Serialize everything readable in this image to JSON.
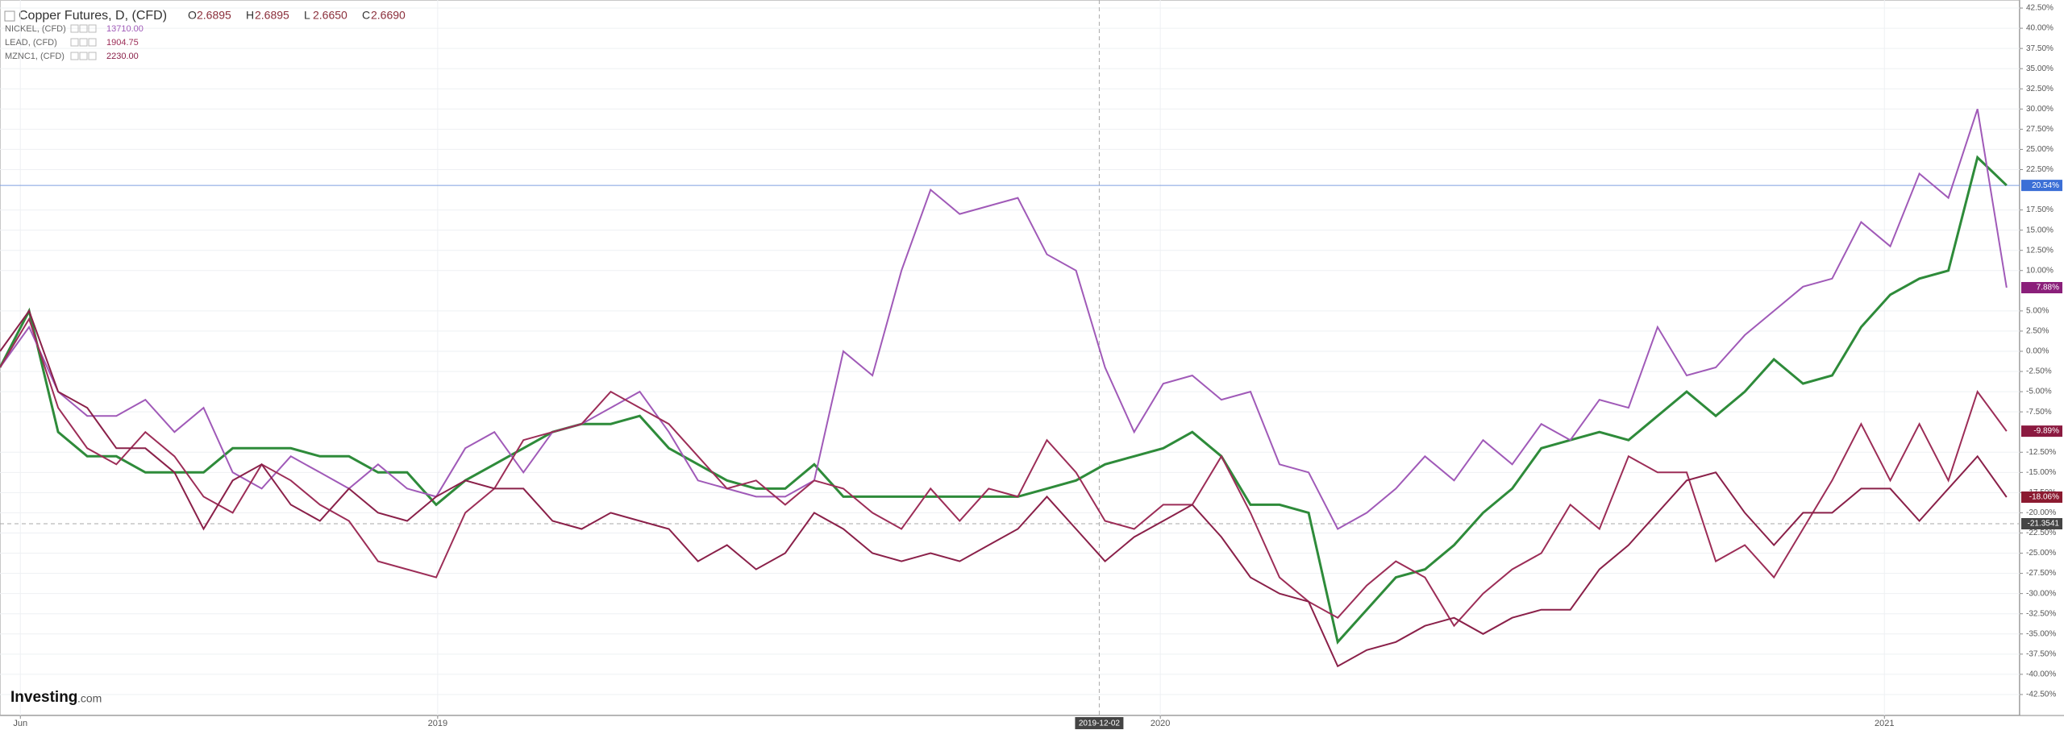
{
  "chart_data": {
    "type": "line",
    "title": "Copper Futures, D, (CFD)",
    "ohlc": [
      {
        "label": "O",
        "value": "2.6895"
      },
      {
        "label": "H",
        "value": "2.6895"
      },
      {
        "label": "L",
        "value": "2.6650"
      },
      {
        "label": "C",
        "value": "2.6690"
      }
    ],
    "legend": [
      {
        "name": "NICKEL, (CFD)",
        "price": "13710.00",
        "color": "#a05ab8"
      },
      {
        "name": "LEAD, (CFD)",
        "price": "1904.75",
        "color": "#9c2d57"
      },
      {
        "name": "MZNC1, (CFD)",
        "price": "2230.00",
        "color": "#8a2049"
      }
    ],
    "logo": {
      "main": "Investing",
      "suffix": ".com"
    },
    "xlim": [
      0,
      69.45
    ],
    "xticks": [
      {
        "value": 0.7,
        "label": "Jun"
      },
      {
        "value": 15.05,
        "label": "2019"
      },
      {
        "value": 39.9,
        "label": "2020"
      },
      {
        "value": 64.8,
        "label": "2021"
      }
    ],
    "crosshair": {
      "x": {
        "value": 37.8,
        "label": "2019-12-02"
      },
      "y": -21.3541
    },
    "ylim": [
      -45.1,
      43.5
    ],
    "yticks": [
      {
        "value": 42.5,
        "label": "42.50%"
      },
      {
        "value": 40,
        "label": "40.00%"
      },
      {
        "value": 37.5,
        "label": "37.50%"
      },
      {
        "value": 35,
        "label": "35.00%"
      },
      {
        "value": 32.5,
        "label": "32.50%"
      },
      {
        "value": 30,
        "label": "30.00%"
      },
      {
        "value": 27.5,
        "label": "27.50%"
      },
      {
        "value": 25,
        "label": "25.00%"
      },
      {
        "value": 22.5,
        "label": "22.50%"
      },
      {
        "value": 17.5,
        "label": "17.50%"
      },
      {
        "value": 15,
        "label": "15.00%"
      },
      {
        "value": 12.5,
        "label": "12.50%"
      },
      {
        "value": 10,
        "label": "10.00%"
      },
      {
        "value": 5,
        "label": "5.00%"
      },
      {
        "value": 2.5,
        "label": "2.50%"
      },
      {
        "value": 0,
        "label": "0.00%"
      },
      {
        "value": -2.5,
        "label": "-2.50%"
      },
      {
        "value": -5,
        "label": "-5.00%"
      },
      {
        "value": -7.5,
        "label": "-7.50%"
      },
      {
        "value": -12.5,
        "label": "-12.50%"
      },
      {
        "value": -15,
        "label": "-15.00%"
      },
      {
        "value": -17.5,
        "label": "-17.50%"
      },
      {
        "value": -20,
        "label": "-20.00%"
      },
      {
        "value": -22.5,
        "label": "-22.50%"
      },
      {
        "value": -25,
        "label": "-25.00%"
      },
      {
        "value": -27.5,
        "label": "-27.50%"
      },
      {
        "value": -30,
        "label": "-30.00%"
      },
      {
        "value": -32.5,
        "label": "-32.50%"
      },
      {
        "value": -35,
        "label": "-35.00%"
      },
      {
        "value": -37.5,
        "label": "-37.50%"
      },
      {
        "value": -40,
        "label": "-40.00%"
      },
      {
        "value": -42.5,
        "label": "-42.50%"
      }
    ],
    "grid": true,
    "series": [
      {
        "name": "Copper Futures, D, (CFD)",
        "color": "#2e8b3a",
        "badge": "#3b6fd6",
        "last_label": "20.54%",
        "values": [
          -2,
          5,
          -10,
          -13,
          -13,
          -15,
          -15,
          -15,
          -12,
          -12,
          -12,
          -13,
          -13,
          -15,
          -15,
          -19,
          -16,
          -14,
          -12,
          -10,
          -9,
          -9,
          -8,
          -12,
          -14,
          -16,
          -17,
          -17,
          -14,
          -18,
          -18,
          -18,
          -18,
          -18,
          -18,
          -18,
          -17,
          -16,
          -14,
          -13,
          -12,
          -10,
          -13,
          -19,
          -19,
          -20,
          -36,
          -32,
          -28,
          -27,
          -24,
          -20,
          -17,
          -12,
          -11,
          -10,
          -11,
          -8,
          -5,
          -8,
          -5,
          -1,
          -4,
          -3,
          3,
          7,
          9,
          10,
          24,
          20.54
        ]
      },
      {
        "name": "NICKEL, (CFD)",
        "color": "#a05ab8",
        "badge": "#8a1f7a",
        "last_label": "7.88%",
        "values": [
          -2,
          3,
          -5,
          -8,
          -8,
          -6,
          -10,
          -7,
          -15,
          -17,
          -13,
          -15,
          -17,
          -14,
          -17,
          -18,
          -12,
          -10,
          -15,
          -10,
          -9,
          -7,
          -5,
          -10,
          -16,
          -17,
          -18,
          -18,
          -16,
          0,
          -3,
          10,
          20,
          17,
          18,
          19,
          12,
          10,
          -2,
          -10,
          -4,
          -3,
          -6,
          -5,
          -14,
          -15,
          -22,
          -20,
          -17,
          -13,
          -16,
          -11,
          -14,
          -9,
          -11,
          -6,
          -7,
          3,
          -3,
          -2,
          2,
          5,
          8,
          9,
          16,
          13,
          22,
          19,
          30,
          7.88
        ]
      },
      {
        "name": "LEAD, (CFD)",
        "color": "#9c2d57",
        "badge": "#8b1a40",
        "last_label": "-9.89%",
        "values": [
          -2,
          4,
          -7,
          -12,
          -14,
          -10,
          -13,
          -18,
          -20,
          -14,
          -16,
          -19,
          -21,
          -26,
          -27,
          -28,
          -20,
          -17,
          -11,
          -10,
          -9,
          -5,
          -7,
          -9,
          -13,
          -17,
          -16,
          -19,
          -16,
          -17,
          -20,
          -22,
          -17,
          -21,
          -17,
          -18,
          -11,
          -15,
          -21,
          -22,
          -19,
          -19,
          -13,
          -20,
          -28,
          -31,
          -33,
          -29,
          -26,
          -28,
          -34,
          -30,
          -27,
          -25,
          -19,
          -22,
          -13,
          -15,
          -15,
          -26,
          -24,
          -28,
          -22,
          -16,
          -9,
          -16,
          -9,
          -16,
          -5,
          -9.89
        ]
      },
      {
        "name": "MZNC1, (CFD)",
        "color": "#8a2049",
        "badge": "#8b1a30",
        "last_label": "-18.06%",
        "values": [
          0,
          5,
          -5,
          -7,
          -12,
          -12,
          -15,
          -22,
          -16,
          -14,
          -19,
          -21,
          -17,
          -20,
          -21,
          -18,
          -16,
          -17,
          -17,
          -21,
          -22,
          -20,
          -21,
          -22,
          -26,
          -24,
          -27,
          -25,
          -20,
          -22,
          -25,
          -26,
          -25,
          -26,
          -24,
          -22,
          -18,
          -22,
          -26,
          -23,
          -21,
          -19,
          -23,
          -28,
          -30,
          -31,
          -39,
          -37,
          -36,
          -34,
          -33,
          -35,
          -33,
          -32,
          -32,
          -27,
          -24,
          -20,
          -16,
          -15,
          -20,
          -24,
          -20,
          -20,
          -17,
          -17,
          -21,
          -17,
          -13,
          -18.06
        ]
      }
    ]
  }
}
